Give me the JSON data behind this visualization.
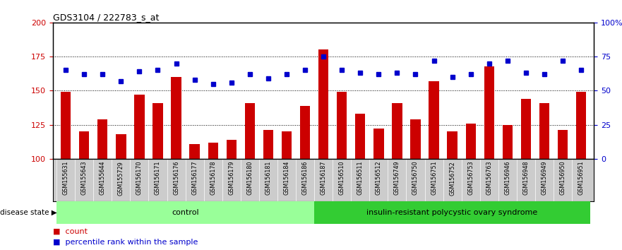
{
  "title": "GDS3104 / 222783_s_at",
  "samples": [
    "GSM155631",
    "GSM155643",
    "GSM155644",
    "GSM155729",
    "GSM156170",
    "GSM156171",
    "GSM156176",
    "GSM156177",
    "GSM156178",
    "GSM156179",
    "GSM156180",
    "GSM156181",
    "GSM156184",
    "GSM156186",
    "GSM156187",
    "GSM156510",
    "GSM156511",
    "GSM156512",
    "GSM156749",
    "GSM156750",
    "GSM156751",
    "GSM156752",
    "GSM156753",
    "GSM156763",
    "GSM156946",
    "GSM156948",
    "GSM156949",
    "GSM156950",
    "GSM156951"
  ],
  "bar_values": [
    149,
    120,
    129,
    118,
    147,
    141,
    160,
    111,
    112,
    114,
    141,
    121,
    120,
    139,
    180,
    149,
    133,
    122,
    141,
    129,
    157,
    120,
    126,
    168,
    125,
    144,
    141,
    121,
    149
  ],
  "dot_values": [
    165,
    162,
    162,
    157,
    164,
    165,
    170,
    158,
    155,
    156,
    162,
    159,
    162,
    165,
    175,
    165,
    163,
    162,
    163,
    162,
    172,
    160,
    162,
    170,
    172,
    163,
    162,
    172,
    165
  ],
  "control_count": 14,
  "disease_count": 15,
  "bar_color": "#cc0000",
  "dot_color": "#0000cc",
  "control_color": "#99ff99",
  "disease_color": "#33cc33",
  "bg_color": "#ffffff",
  "xticklabel_bg": "#cccccc",
  "ylim_left": [
    100,
    200
  ],
  "ylim_right": [
    0,
    100
  ],
  "yticks_left": [
    100,
    125,
    150,
    175,
    200
  ],
  "yticks_right": [
    0,
    25,
    50,
    75,
    100
  ],
  "ytick_labels_left": [
    "100",
    "125",
    "150",
    "175",
    "200"
  ],
  "ytick_labels_right": [
    "0",
    "25",
    "50",
    "75",
    "100%"
  ],
  "grid_values": [
    125,
    150,
    175
  ],
  "disease_state_label": "disease state",
  "control_label": "control",
  "disease_label": "insulin-resistant polycystic ovary syndrome",
  "legend_bar_label": "count",
  "legend_dot_label": "percentile rank within the sample"
}
